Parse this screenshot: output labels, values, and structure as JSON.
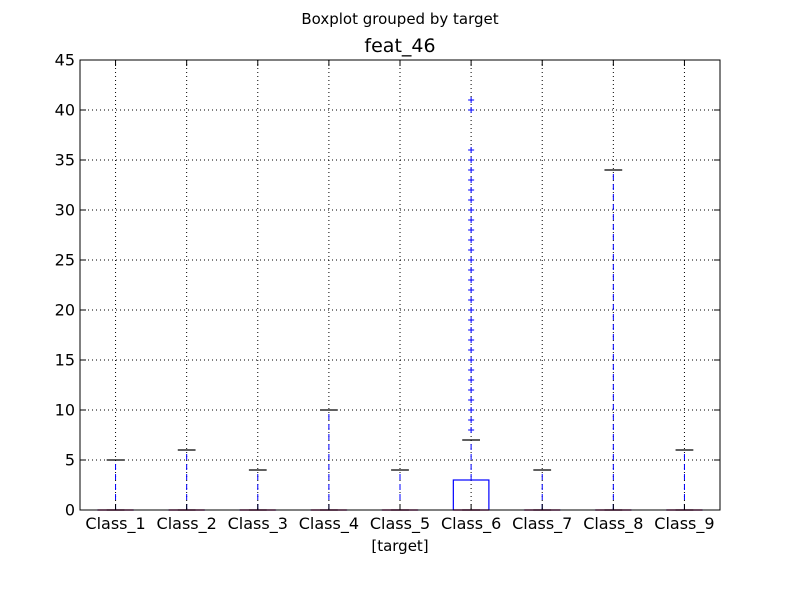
{
  "chart_data": {
    "type": "boxplot",
    "suptitle": "Boxplot grouped by target",
    "title": "feat_46",
    "xlabel": "[target]",
    "ylabel": "",
    "ylim": [
      0,
      45
    ],
    "yticks": [
      0,
      5,
      10,
      15,
      20,
      25,
      30,
      35,
      40,
      45
    ],
    "grid": true,
    "categories": [
      "Class_1",
      "Class_2",
      "Class_3",
      "Class_4",
      "Class_5",
      "Class_6",
      "Class_7",
      "Class_8",
      "Class_9"
    ],
    "boxes": [
      {
        "category": "Class_1",
        "whislo": 0,
        "q1": 0,
        "med": 0,
        "q3": 0,
        "whishi": 5,
        "fliers": []
      },
      {
        "category": "Class_2",
        "whislo": 0,
        "q1": 0,
        "med": 0,
        "q3": 0,
        "whishi": 6,
        "fliers": []
      },
      {
        "category": "Class_3",
        "whislo": 0,
        "q1": 0,
        "med": 0,
        "q3": 0,
        "whishi": 4,
        "fliers": []
      },
      {
        "category": "Class_4",
        "whislo": 0,
        "q1": 0,
        "med": 0,
        "q3": 0,
        "whishi": 10,
        "fliers": []
      },
      {
        "category": "Class_5",
        "whislo": 0,
        "q1": 0,
        "med": 0,
        "q3": 0,
        "whishi": 4,
        "fliers": []
      },
      {
        "category": "Class_6",
        "whislo": 0,
        "q1": 0,
        "med": 0,
        "q3": 3,
        "whishi": 7,
        "fliers": [
          8,
          9,
          10,
          11,
          12,
          13,
          14,
          15,
          16,
          17,
          18,
          19,
          20,
          21,
          22,
          23,
          24,
          25,
          26,
          27,
          28,
          29,
          30,
          31,
          32,
          33,
          34,
          35,
          36,
          40,
          41
        ]
      },
      {
        "category": "Class_7",
        "whislo": 0,
        "q1": 0,
        "med": 0,
        "q3": 0,
        "whishi": 4,
        "fliers": []
      },
      {
        "category": "Class_8",
        "whislo": 0,
        "q1": 0,
        "med": 0,
        "q3": 0,
        "whishi": 34,
        "fliers": []
      },
      {
        "category": "Class_9",
        "whislo": 0,
        "q1": 0,
        "med": 0,
        "q3": 0,
        "whishi": 6,
        "fliers": []
      }
    ],
    "colors": {
      "box": "#0000ff",
      "whisker": "#0000ff",
      "cap": "#000000",
      "flier": "#0000ff",
      "median": "#ff0000",
      "grid": "#000000",
      "axes": "#000000"
    }
  }
}
